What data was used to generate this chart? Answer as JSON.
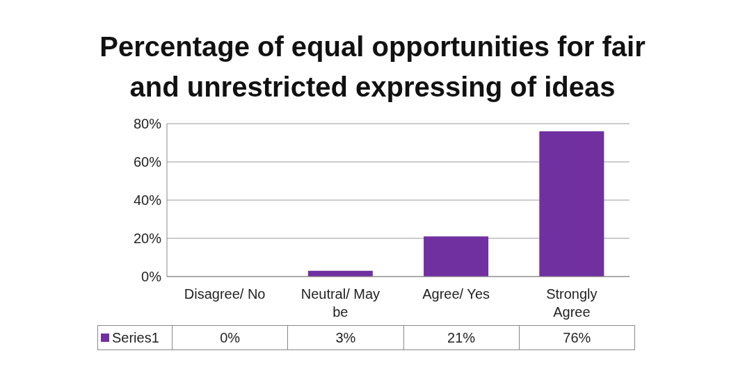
{
  "chart_data": {
    "type": "bar",
    "title": "Percentage of equal opportunities for fair and unrestricted expressing of ideas",
    "categories": [
      "Disagree/ No",
      "Neutral/ May be",
      "Agree/ Yes",
      "Strongly Agree"
    ],
    "series": [
      {
        "name": "Series1",
        "color": "#7030a0",
        "values": [
          0,
          3,
          21,
          76
        ],
        "value_labels": [
          "0%",
          "3%",
          "21%",
          "76%"
        ]
      }
    ],
    "ylim": [
      0,
      80
    ],
    "yticks": [
      {
        "value": 0,
        "label": "0%"
      },
      {
        "value": 20,
        "label": "20%"
      },
      {
        "value": 40,
        "label": "40%"
      },
      {
        "value": 60,
        "label": "60%"
      },
      {
        "value": 80,
        "label": "80%"
      }
    ],
    "grid": "y",
    "legend": "bottom"
  }
}
